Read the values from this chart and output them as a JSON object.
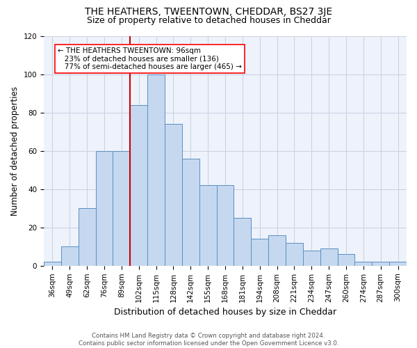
{
  "title": "THE HEATHERS, TWEENTOWN, CHEDDAR, BS27 3JE",
  "subtitle": "Size of property relative to detached houses in Cheddar",
  "xlabel": "Distribution of detached houses by size in Cheddar",
  "ylabel": "Number of detached properties",
  "bar_labels": [
    "36sqm",
    "49sqm",
    "62sqm",
    "76sqm",
    "89sqm",
    "102sqm",
    "115sqm",
    "128sqm",
    "142sqm",
    "155sqm",
    "168sqm",
    "181sqm",
    "194sqm",
    "208sqm",
    "221sqm",
    "234sqm",
    "247sqm",
    "260sqm",
    "274sqm",
    "287sqm",
    "300sqm"
  ],
  "bar_values": [
    2,
    10,
    30,
    60,
    60,
    84,
    100,
    74,
    56,
    42,
    42,
    25,
    14,
    16,
    12,
    8,
    9,
    6,
    2,
    2,
    2
  ],
  "bar_color": "#c5d8f0",
  "bar_edge_color": "#5a8fc0",
  "red_line_index": 5,
  "red_line_color": "#cc0000",
  "ann_line1": "← THE HEATHERS TWEENTOWN: 96sqm",
  "ann_line2": "   23% of detached houses are smaller (136)",
  "ann_line3": "   77% of semi-detached houses are larger (465) →",
  "ylim": [
    0,
    120
  ],
  "yticks": [
    0,
    20,
    40,
    60,
    80,
    100,
    120
  ],
  "grid_color": "#c8d0e0",
  "background_color": "#edf2fb",
  "footer_line1": "Contains HM Land Registry data © Crown copyright and database right 2024.",
  "footer_line2": "Contains public sector information licensed under the Open Government Licence v3.0.",
  "title_fontsize": 10,
  "subtitle_fontsize": 9,
  "xlabel_fontsize": 9,
  "ylabel_fontsize": 8.5,
  "tick_fontsize": 7.5,
  "ann_fontsize": 7.5
}
